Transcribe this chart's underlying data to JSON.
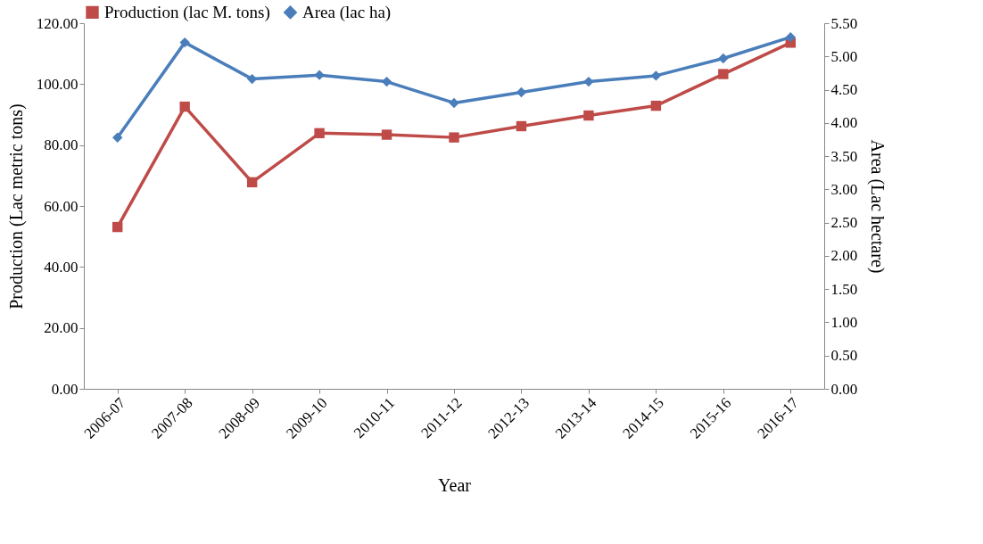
{
  "chart_data": {
    "type": "line",
    "xlabel": "Year",
    "ylabel": "Production (Lac metric tons)",
    "y2label": "Area (Lac hectare)",
    "legend": "top",
    "grid": false,
    "line_style": "solid",
    "categories": [
      "2006-07",
      "2007-08",
      "2008-09",
      "2009-10",
      "2010-11",
      "2011-12",
      "2012-13",
      "2013-14",
      "2014-15",
      "2015-16",
      "2016-17"
    ],
    "series": [
      {
        "name": "Production (lac M. tons)",
        "color": "#be4b48",
        "marker": "square",
        "values": [
          53.1,
          92.6,
          67.8,
          83.9,
          83.4,
          82.5,
          86.2,
          89.7,
          92.9,
          103.3,
          113.6
        ]
      },
      {
        "name": "Area (lac ha)",
        "color": "#4a7ebb",
        "marker": "diamond",
        "axis": "y2",
        "values": [
          3.78,
          5.21,
          4.66,
          4.72,
          4.62,
          4.3,
          4.46,
          4.62,
          4.71,
          4.97,
          5.29
        ]
      }
    ],
    "ylim": [
      0,
      120
    ],
    "yticks": [
      {
        "value": 0,
        "label": "0.00"
      },
      {
        "value": 20,
        "label": "20.00"
      },
      {
        "value": 40,
        "label": "40.00"
      },
      {
        "value": 60,
        "label": "60.00"
      },
      {
        "value": 80,
        "label": "80.00"
      },
      {
        "value": 100,
        "label": "100.00"
      },
      {
        "value": 120,
        "label": "120.00"
      }
    ],
    "y2lim": [
      0,
      5.5
    ],
    "y2ticks": [
      {
        "value": 0,
        "label": "0.00"
      },
      {
        "value": 0.5,
        "label": "0.50"
      },
      {
        "value": 1,
        "label": "1.00"
      },
      {
        "value": 1.5,
        "label": "1.50"
      },
      {
        "value": 2,
        "label": "2.00"
      },
      {
        "value": 2.5,
        "label": "2.50"
      },
      {
        "value": 3,
        "label": "3.00"
      },
      {
        "value": 3.5,
        "label": "3.50"
      },
      {
        "value": 4,
        "label": "4.00"
      },
      {
        "value": 4.5,
        "label": "4.50"
      },
      {
        "value": 5,
        "label": "5.00"
      },
      {
        "value": 5.5,
        "label": "5.50"
      }
    ]
  }
}
